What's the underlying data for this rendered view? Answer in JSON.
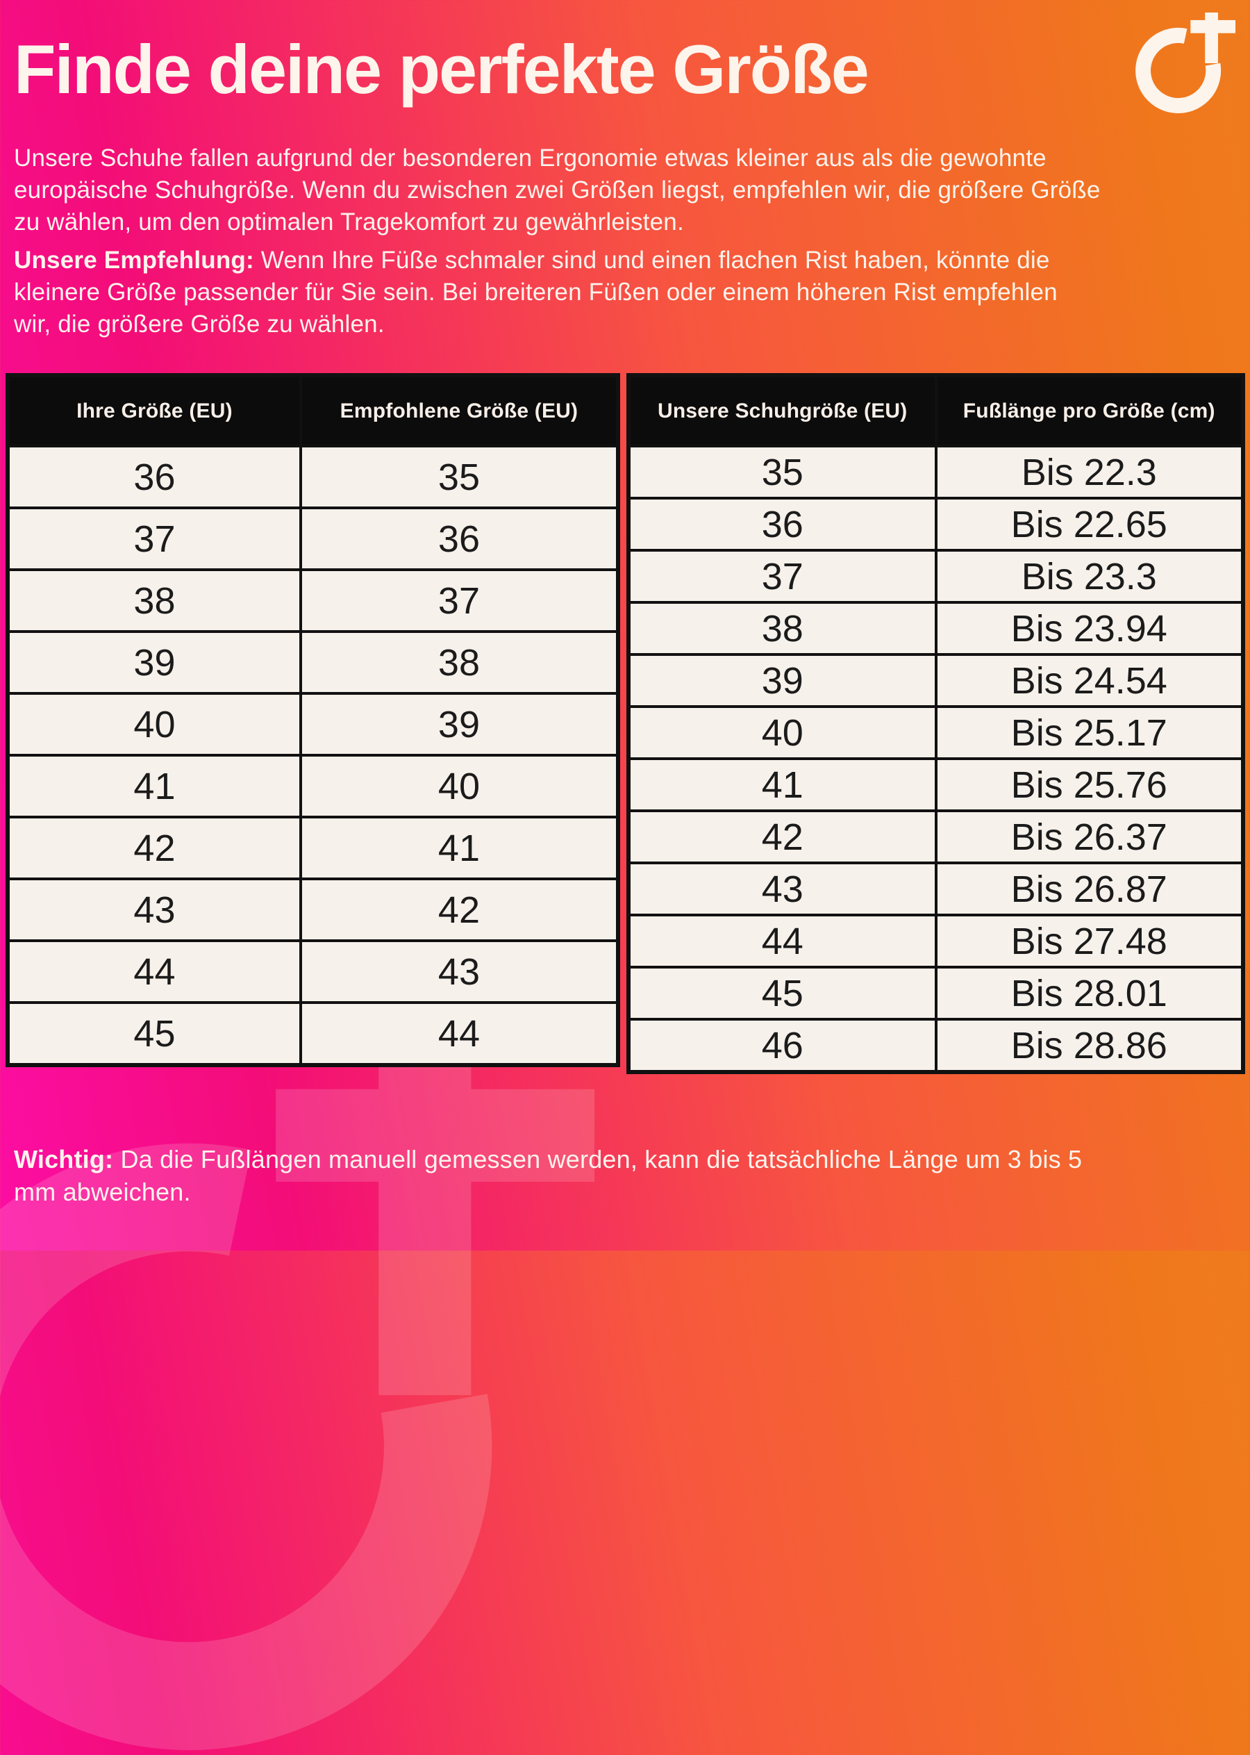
{
  "header": {
    "title": "Finde deine perfekte Größe",
    "intro": "Unsere Schuhe fallen aufgrund der besonderen Ergonomie etwas kleiner aus als die gewohnte europäische Schuhgröße. Wenn du zwischen zwei Größen liegst, empfehlen wir, die größere Größe zu wählen, um den optimalen Tragekomfort zu gewährleisten.",
    "recommendation_label": "Unsere Empfehlung:",
    "recommendation_text": " Wenn Ihre Füße schmaler sind und einen flachen Rist haben, könnte die kleinere Größe passender für Sie sein. Bei breiteren Füßen oder einem höheren Rist empfehlen wir, die größere Größe zu wählen."
  },
  "size_conversion_table": {
    "headers": [
      "Ihre Größe (EU)",
      "Empfohlene Größe (EU)"
    ],
    "rows": [
      [
        "36",
        "35"
      ],
      [
        "37",
        "36"
      ],
      [
        "38",
        "37"
      ],
      [
        "39",
        "38"
      ],
      [
        "40",
        "39"
      ],
      [
        "41",
        "40"
      ],
      [
        "42",
        "41"
      ],
      [
        "43",
        "42"
      ],
      [
        "44",
        "43"
      ],
      [
        "45",
        "44"
      ]
    ]
  },
  "foot_length_table": {
    "headers": [
      "Unsere Schuhgröße (EU)",
      "Fußlänge pro Größe (cm)"
    ],
    "rows": [
      [
        "35",
        "Bis 22.3"
      ],
      [
        "36",
        "Bis 22.65"
      ],
      [
        "37",
        "Bis 23.3"
      ],
      [
        "38",
        "Bis 23.94"
      ],
      [
        "39",
        "Bis 24.54"
      ],
      [
        "40",
        "Bis 25.17"
      ],
      [
        "41",
        "Bis 25.76"
      ],
      [
        "42",
        "Bis 26.37"
      ],
      [
        "43",
        "Bis 26.87"
      ],
      [
        "44",
        "Bis 27.48"
      ],
      [
        "45",
        "Bis 28.01"
      ],
      [
        "46",
        "Bis 28.86"
      ]
    ]
  },
  "footer": {
    "label": "Wichtig:",
    "text": " Da die Fußlängen manuell gemessen werden, kann die tatsächliche Länge um 3 bis 5 mm abweichen."
  },
  "icons": {
    "brand_logo": "circle-plus-logo",
    "watermark": "circle-plus-logo"
  },
  "colors": {
    "gradient_start": "#fc0da4",
    "gradient_pink": "#f30d78",
    "gradient_coral": "#f7563f",
    "gradient_end": "#f0771c",
    "table_header_bg": "#0d0c0c",
    "table_cell_bg": "#f7f1eb",
    "table_border": "#121111",
    "text_light": "#fdf3ec",
    "text_dark": "#1b1b1b"
  }
}
